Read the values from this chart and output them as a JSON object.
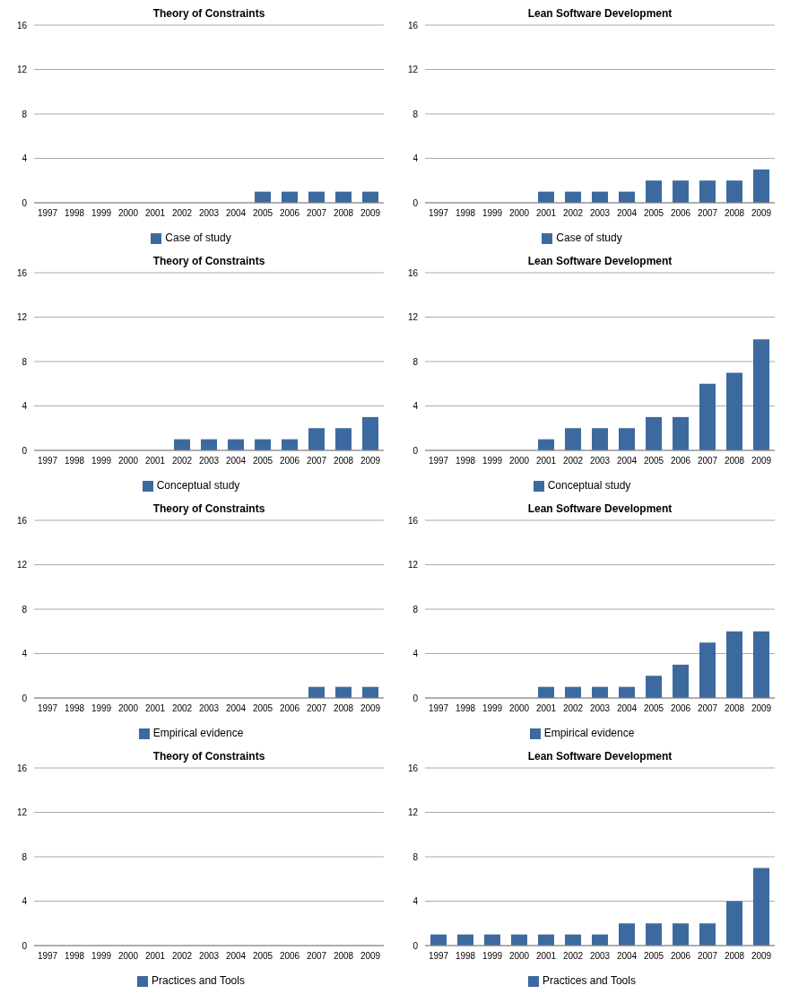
{
  "chart_data": [
    {
      "type": "bar",
      "title": "Theory of Constraints",
      "categories": [
        "1997",
        "1998",
        "1999",
        "2000",
        "2001",
        "2002",
        "2003",
        "2004",
        "2005",
        "2006",
        "2007",
        "2008",
        "2009"
      ],
      "series": [
        {
          "name": "Case of study",
          "color": "#3d6a9e",
          "values": [
            0,
            0,
            0,
            0,
            0,
            0,
            0,
            0,
            1,
            1,
            1,
            1,
            1
          ]
        }
      ],
      "ylim": [
        0,
        16
      ],
      "yticks": [
        0,
        4,
        8,
        12,
        16
      ],
      "grid": "y",
      "legend": "bottom"
    },
    {
      "type": "bar",
      "title": "Lean Software Development",
      "categories": [
        "1997",
        "1998",
        "1999",
        "2000",
        "2001",
        "2002",
        "2003",
        "2004",
        "2005",
        "2006",
        "2007",
        "2008",
        "2009"
      ],
      "series": [
        {
          "name": "Case of study",
          "color": "#3d6a9e",
          "values": [
            0,
            0,
            0,
            0,
            1,
            1,
            1,
            1,
            2,
            2,
            2,
            2,
            3
          ]
        }
      ],
      "ylim": [
        0,
        16
      ],
      "yticks": [
        0,
        4,
        8,
        12,
        16
      ],
      "grid": "y",
      "legend": "bottom"
    },
    {
      "type": "bar",
      "title": "Theory of Constraints",
      "categories": [
        "1997",
        "1998",
        "1999",
        "2000",
        "2001",
        "2002",
        "2003",
        "2004",
        "2005",
        "2006",
        "2007",
        "2008",
        "2009"
      ],
      "series": [
        {
          "name": "Conceptual study",
          "color": "#3d6a9e",
          "values": [
            0,
            0,
            0,
            0,
            0,
            1,
            1,
            1,
            1,
            1,
            2,
            2,
            3
          ]
        }
      ],
      "ylim": [
        0,
        16
      ],
      "yticks": [
        0,
        4,
        8,
        12,
        16
      ],
      "grid": "y",
      "legend": "bottom"
    },
    {
      "type": "bar",
      "title": "Lean Software Development",
      "categories": [
        "1997",
        "1998",
        "1999",
        "2000",
        "2001",
        "2002",
        "2003",
        "2004",
        "2005",
        "2006",
        "2007",
        "2008",
        "2009"
      ],
      "series": [
        {
          "name": "Conceptual study",
          "color": "#3d6a9e",
          "values": [
            0,
            0,
            0,
            0,
            1,
            2,
            2,
            2,
            3,
            3,
            6,
            7,
            10
          ]
        }
      ],
      "ylim": [
        0,
        16
      ],
      "yticks": [
        0,
        4,
        8,
        12,
        16
      ],
      "grid": "y",
      "legend": "bottom"
    },
    {
      "type": "bar",
      "title": "Theory of Constraints",
      "categories": [
        "1997",
        "1998",
        "1999",
        "2000",
        "2001",
        "2002",
        "2003",
        "2004",
        "2005",
        "2006",
        "2007",
        "2008",
        "2009"
      ],
      "series": [
        {
          "name": "Empirical evidence",
          "color": "#3d6a9e",
          "values": [
            0,
            0,
            0,
            0,
            0,
            0,
            0,
            0,
            0,
            0,
            1,
            1,
            1
          ]
        }
      ],
      "ylim": [
        0,
        16
      ],
      "yticks": [
        0,
        4,
        8,
        12,
        16
      ],
      "grid": "y",
      "legend": "bottom"
    },
    {
      "type": "bar",
      "title": "Lean Software Development",
      "categories": [
        "1997",
        "1998",
        "1999",
        "2000",
        "2001",
        "2002",
        "2003",
        "2004",
        "2005",
        "2006",
        "2007",
        "2008",
        "2009"
      ],
      "series": [
        {
          "name": "Empirical evidence",
          "color": "#3d6a9e",
          "values": [
            0,
            0,
            0,
            0,
            1,
            1,
            1,
            1,
            2,
            3,
            5,
            6,
            6
          ]
        }
      ],
      "ylim": [
        0,
        16
      ],
      "yticks": [
        0,
        4,
        8,
        12,
        16
      ],
      "grid": "y",
      "legend": "bottom"
    },
    {
      "type": "bar",
      "title": "Theory of Constraints",
      "categories": [
        "1997",
        "1998",
        "1999",
        "2000",
        "2001",
        "2002",
        "2003",
        "2004",
        "2005",
        "2006",
        "2007",
        "2008",
        "2009"
      ],
      "series": [
        {
          "name": "Practices and Tools",
          "color": "#3d6a9e",
          "values": [
            0,
            0,
            0,
            0,
            0,
            0,
            0,
            0,
            0,
            0,
            0,
            0,
            0
          ]
        }
      ],
      "ylim": [
        0,
        16
      ],
      "yticks": [
        0,
        4,
        8,
        12,
        16
      ],
      "grid": "y",
      "legend": "bottom"
    },
    {
      "type": "bar",
      "title": "Lean Software Development",
      "categories": [
        "1997",
        "1998",
        "1999",
        "2000",
        "2001",
        "2002",
        "2003",
        "2004",
        "2005",
        "2006",
        "2007",
        "2008",
        "2009"
      ],
      "series": [
        {
          "name": "Practices and Tools",
          "color": "#3d6a9e",
          "values": [
            1,
            1,
            1,
            1,
            1,
            1,
            1,
            2,
            2,
            2,
            2,
            4,
            7
          ]
        }
      ],
      "ylim": [
        0,
        16
      ],
      "yticks": [
        0,
        4,
        8,
        12,
        16
      ],
      "grid": "y",
      "legend": "bottom"
    }
  ]
}
